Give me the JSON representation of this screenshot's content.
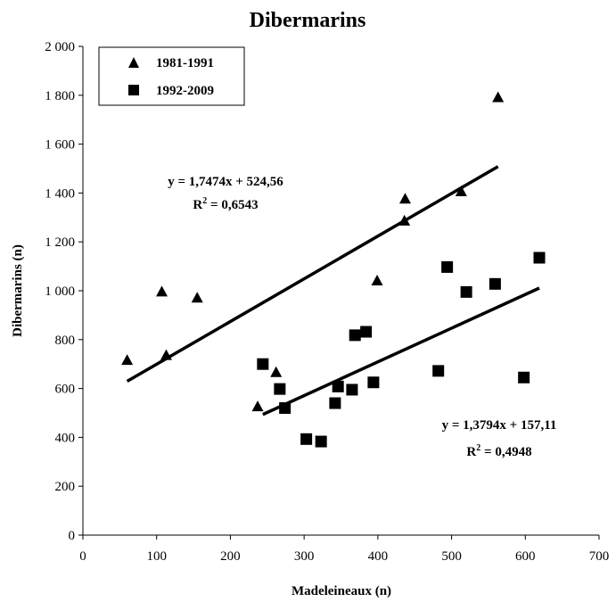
{
  "chart_data": {
    "type": "scatter",
    "title": "Dibermarins",
    "xlabel": "Madeleineaux (n)",
    "ylabel": "Dibermarins (n)",
    "xlim": [
      0,
      700
    ],
    "ylim": [
      0,
      2000
    ],
    "x_ticks": [
      "0",
      "100",
      "200",
      "300",
      "400",
      "500",
      "600",
      "700"
    ],
    "y_ticks": [
      "0",
      "200",
      "400",
      "600",
      "800",
      "1 000",
      "1 200",
      "1 400",
      "1 600",
      "1 800",
      "2 000"
    ],
    "grid": false,
    "legend_position": "top-left",
    "series": [
      {
        "name": "1981-1991",
        "marker": "triangle",
        "color": "#000000",
        "points": [
          {
            "x": 60,
            "y": 715
          },
          {
            "x": 107,
            "y": 995
          },
          {
            "x": 113,
            "y": 735
          },
          {
            "x": 155,
            "y": 970
          },
          {
            "x": 237,
            "y": 525
          },
          {
            "x": 262,
            "y": 665
          },
          {
            "x": 399,
            "y": 1040
          },
          {
            "x": 436,
            "y": 1285
          },
          {
            "x": 437,
            "y": 1375
          },
          {
            "x": 513,
            "y": 1405
          },
          {
            "x": 563,
            "y": 1790
          }
        ],
        "trendline": {
          "slope": 1.7474,
          "intercept": 524.56,
          "x_range": [
            60,
            563
          ],
          "equation_text": "y = 1,7474x + 524,56",
          "r2_prefix": "R",
          "r2_exponent": "2",
          "r2_value": " = 0,6543"
        }
      },
      {
        "name": "1992-2009",
        "marker": "square",
        "color": "#000000",
        "points": [
          {
            "x": 244,
            "y": 700
          },
          {
            "x": 267,
            "y": 598
          },
          {
            "x": 274,
            "y": 520
          },
          {
            "x": 303,
            "y": 393
          },
          {
            "x": 323,
            "y": 383
          },
          {
            "x": 342,
            "y": 540
          },
          {
            "x": 346,
            "y": 608
          },
          {
            "x": 365,
            "y": 595
          },
          {
            "x": 369,
            "y": 818
          },
          {
            "x": 384,
            "y": 832
          },
          {
            "x": 394,
            "y": 625
          },
          {
            "x": 482,
            "y": 672
          },
          {
            "x": 494,
            "y": 1097
          },
          {
            "x": 520,
            "y": 995
          },
          {
            "x": 559,
            "y": 1028
          },
          {
            "x": 598,
            "y": 645
          },
          {
            "x": 619,
            "y": 1135
          }
        ],
        "trendline": {
          "slope": 1.3794,
          "intercept": 157.11,
          "x_range": [
            244,
            619
          ],
          "equation_text": "y = 1,3794x + 157,11",
          "r2_prefix": "R",
          "r2_exponent": "2",
          "r2_value": " = 0,4948"
        }
      }
    ]
  }
}
